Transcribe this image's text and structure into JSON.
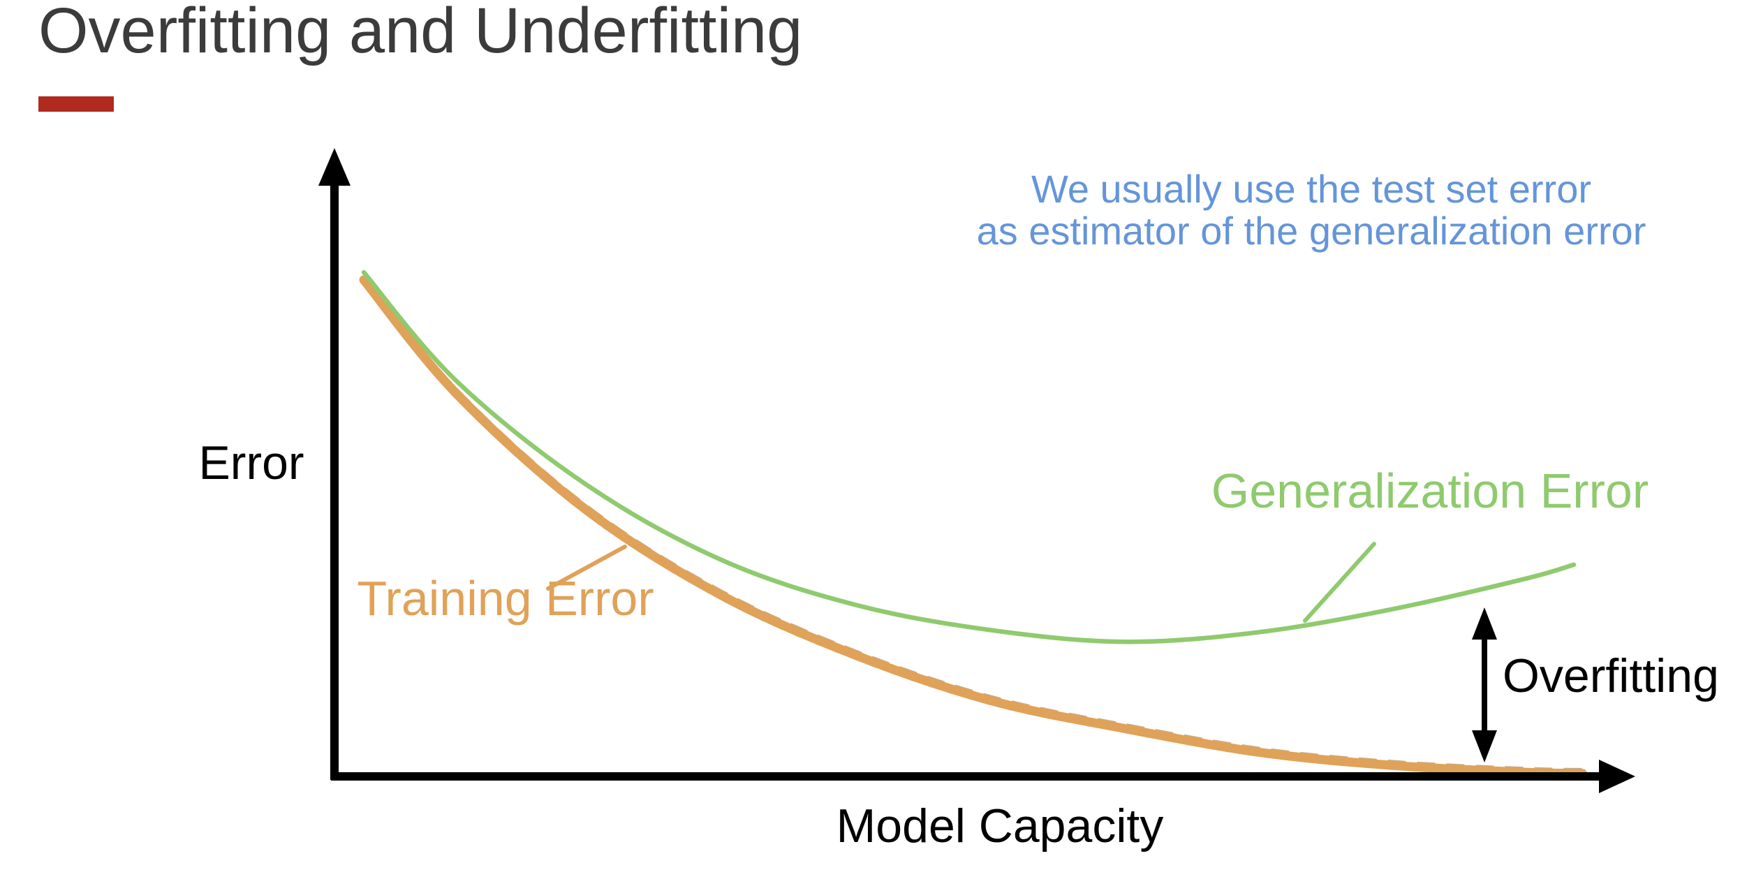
{
  "slide": {
    "title": "Overfitting and Underfitting",
    "background": "#ffffff"
  },
  "colors": {
    "title_text": "#3b3b3b",
    "accent_bar_red": "#b12a20",
    "annotation_blue": "#6495d9",
    "generalization_green": "#8fca6e",
    "training_orange": "#dfa258",
    "axis_black": "#000000"
  },
  "annotation": {
    "line1": "We usually use the test set error",
    "line2": "as estimator of the generalization error"
  },
  "labels": {
    "y_axis": "Error",
    "x_axis": "Model Capacity",
    "generalization": "Generalization Error",
    "training": "Training Error",
    "overfitting": "Overfitting"
  },
  "chart_data": {
    "type": "line",
    "title": "",
    "xlabel": "Model Capacity",
    "ylabel": "Error",
    "x_range": [
      0,
      10
    ],
    "y_range": [
      0,
      1
    ],
    "grid": false,
    "axes_style": "black arrow axes, no ticks, no tick labels",
    "legend": "inline colored text labels with leader lines",
    "series": [
      {
        "name": "Generalization Error",
        "color": "#8fca6e",
        "style": "thin smooth line, U-shape with minimum near x=6.2",
        "x": [
          0,
          0.75,
          1.8,
          2.9,
          4.0,
          5.1,
          6.2,
          7.3,
          8.4,
          9.45,
          9.83
        ],
        "y": [
          1.0,
          0.785,
          0.58,
          0.43,
          0.34,
          0.29,
          0.267,
          0.287,
          0.334,
          0.393,
          0.42
        ]
      },
      {
        "name": "Training Error",
        "color": "#dfa258",
        "style": "thick hand-drawn marker stroke, monotonically decreasing toward zero",
        "x": [
          0,
          0.75,
          1.8,
          2.9,
          4.0,
          5.1,
          6.2,
          7.3,
          8.4,
          9.45,
          9.9
        ],
        "y": [
          0.985,
          0.76,
          0.53,
          0.36,
          0.24,
          0.15,
          0.094,
          0.047,
          0.021,
          0.008,
          0.006
        ]
      }
    ],
    "annotations": [
      {
        "text": "We usually use the test set error as estimator of the generalization error",
        "color": "#6495d9",
        "position": "top right, above the curves"
      },
      {
        "text": "Overfitting",
        "color": "#000000",
        "position": "black double-headed vertical arrow spanning the gap between the two curves at x≈9.1"
      }
    ]
  }
}
